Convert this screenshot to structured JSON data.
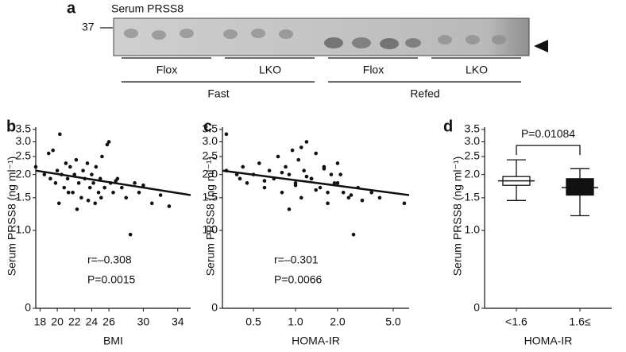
{
  "blot": {
    "panel_label": "a",
    "title": "Serum PRSS8",
    "marker": "37",
    "groups": [
      "Flox",
      "LKO",
      "Flox",
      "LKO"
    ],
    "conditions": [
      "Fast",
      "Refed"
    ]
  },
  "chart_data": [
    {
      "type": "scatter",
      "panel_label": "b",
      "xlabel": "BMI",
      "ylabel": "Serum PRSS8 (ng ml⁻¹)",
      "y_scale": "log",
      "x_scale": "linear",
      "xlim": [
        17.5,
        35.5
      ],
      "xticks": [
        18,
        20,
        22,
        24,
        26,
        30,
        34
      ],
      "ylim": [
        0,
        3.6
      ],
      "yticks": [
        0,
        {
          "value": 1,
          "label": "1.0"
        },
        1.5,
        {
          "value": 2,
          "label": "2.0"
        },
        2.5,
        {
          "value": 3,
          "label": "3.0"
        },
        3.5
      ],
      "x": [
        17.5,
        18.5,
        19,
        19.2,
        19.5,
        19.8,
        20,
        20.3,
        20.5,
        20.8,
        21,
        21.2,
        21.5,
        21.8,
        22,
        22.2,
        22.5,
        22.8,
        23,
        23.2,
        23.5,
        23.8,
        24,
        24.2,
        24.5,
        24.8,
        25,
        25.2,
        25.5,
        25.8,
        26,
        26.2,
        26.5,
        27,
        27.5,
        28,
        28.5,
        29,
        29.5,
        30,
        31,
        32,
        33,
        20.2,
        22.3,
        24.4,
        25.1,
        23.6,
        21.3,
        26.8
      ],
      "y": [
        2.2,
        2.0,
        2.6,
        1.9,
        2.7,
        1.8,
        2.1,
        3.3,
        2.0,
        1.7,
        2.3,
        1.9,
        2.2,
        1.6,
        2.0,
        2.4,
        1.8,
        1.5,
        2.1,
        1.9,
        2.3,
        1.7,
        2.0,
        1.8,
        2.2,
        1.6,
        1.9,
        2.5,
        1.7,
        2.9,
        3.0,
        1.8,
        1.6,
        1.9,
        1.7,
        1.5,
        0.95,
        1.8,
        1.6,
        1.75,
        1.4,
        1.55,
        1.35,
        1.4,
        1.3,
        1.4,
        1.5,
        1.45,
        1.6,
        1.85
      ],
      "color": "#111111",
      "fit_line": {
        "x": [
          17.5,
          35.5
        ],
        "y": [
          2.1,
          1.55
        ]
      },
      "annotations": [
        "r=–0.308",
        "P=0.0015"
      ]
    },
    {
      "type": "scatter",
      "panel_label": "c",
      "xlabel": "HOMA-IR",
      "ylabel": "Serum PRSS8 (ng ml⁻¹)",
      "y_scale": "log",
      "x_scale": "log",
      "xlim": [
        0.3,
        6.5
      ],
      "xticks": [
        0.5,
        {
          "value": 1,
          "label": "1.0"
        },
        {
          "value": 2,
          "label": "2.0"
        },
        {
          "value": 5,
          "label": "5.0"
        }
      ],
      "ylim": [
        0,
        3.6
      ],
      "yticks": [
        0,
        {
          "value": 1,
          "label": "1.0"
        },
        1.5,
        {
          "value": 2,
          "label": "2.0"
        },
        2.5,
        {
          "value": 3,
          "label": "3.0"
        },
        3.5
      ],
      "x": [
        0.32,
        0.32,
        0.38,
        0.4,
        0.42,
        0.45,
        0.5,
        0.55,
        0.6,
        0.65,
        0.7,
        0.75,
        0.8,
        0.85,
        0.9,
        0.95,
        1.0,
        1.05,
        1.1,
        1.15,
        1.2,
        1.3,
        1.4,
        1.5,
        1.6,
        1.7,
        1.8,
        1.9,
        2.0,
        2.2,
        2.4,
        2.6,
        2.8,
        3.0,
        3.5,
        4.0,
        6.0,
        0.6,
        0.8,
        1.0,
        1.2,
        1.4,
        1.6,
        2.0,
        2.5,
        0.9,
        1.1,
        1.3,
        1.7,
        2.1
      ],
      "y": [
        2.1,
        3.3,
        2.0,
        1.9,
        2.2,
        1.8,
        2.0,
        2.3,
        1.7,
        2.1,
        1.9,
        2.5,
        1.6,
        2.2,
        2.0,
        2.7,
        1.8,
        2.4,
        1.5,
        2.1,
        3.0,
        1.9,
        2.6,
        1.7,
        2.2,
        1.4,
        2.0,
        1.8,
        2.3,
        1.6,
        1.5,
        0.95,
        1.7,
        1.45,
        1.6,
        1.5,
        1.4,
        1.85,
        2.05,
        1.75,
        1.95,
        1.65,
        2.15,
        1.8,
        1.55,
        1.3,
        2.8,
        1.9,
        1.6,
        2.0
      ],
      "color": "#111111",
      "fit_line": {
        "x": [
          0.3,
          6.5
        ],
        "y": [
          2.1,
          1.55
        ]
      },
      "annotations": [
        "r=–0.301",
        "P=0.0066"
      ]
    },
    {
      "type": "box",
      "panel_label": "d",
      "xlabel": "HOMA-IR",
      "ylabel": "Serum PRSS8 (ng ml⁻¹)",
      "y_scale": "log",
      "ylim": [
        0,
        3.6
      ],
      "yticks": [
        0,
        {
          "value": 1,
          "label": "1.0"
        },
        1.5,
        {
          "value": 2,
          "label": "2.0"
        },
        2.5,
        {
          "value": 3,
          "label": "3.0"
        },
        3.5
      ],
      "categories": [
        "<1.6",
        "1.6≤"
      ],
      "whisker_low": [
        1.45,
        1.2
      ],
      "q1": [
        1.75,
        1.55
      ],
      "median": [
        1.85,
        1.7
      ],
      "q3": [
        1.95,
        1.9
      ],
      "whisker_high": [
        2.4,
        2.15
      ],
      "colors": [
        "#ffffff",
        "#111111"
      ],
      "p_label": "P=0.01084"
    }
  ]
}
